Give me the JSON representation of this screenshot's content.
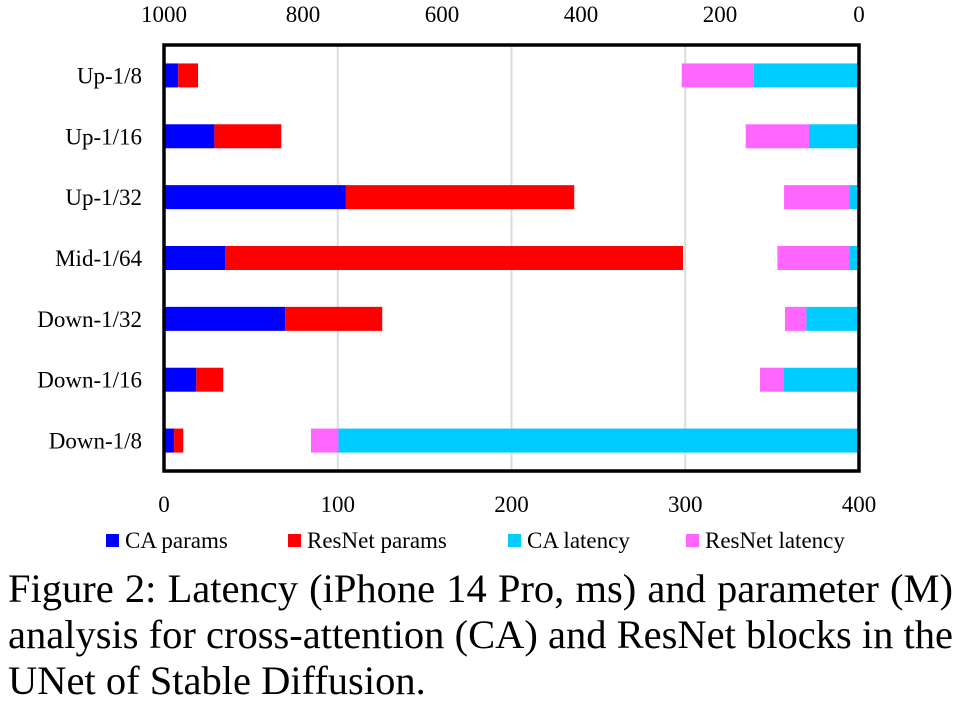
{
  "chart_data": {
    "type": "bar",
    "orientation": "horizontal",
    "stacked": true,
    "categories": [
      "Up-1/8",
      "Up-1/16",
      "Up-1/32",
      "Mid-1/64",
      "Down-1/32",
      "Down-1/16",
      "Down-1/8"
    ],
    "bottom_axis": {
      "range": [
        0,
        400
      ],
      "ticks": [
        0,
        100,
        200,
        300,
        400
      ],
      "quantity": "parameters (M)"
    },
    "top_axis": {
      "range": [
        1000,
        0
      ],
      "reversed": true,
      "ticks": [
        1000,
        800,
        600,
        400,
        200,
        0
      ],
      "quantity": "latency (ms)"
    },
    "grid": true,
    "series": [
      {
        "name": "CA params",
        "axis": "bottom",
        "color": "#0000ff",
        "values": [
          8.2,
          29.0,
          104.7,
          35.3,
          69.8,
          18.6,
          5.8
        ]
      },
      {
        "name": "ResNet params",
        "axis": "bottom",
        "color": "#ff0000",
        "values": [
          11.4,
          38.5,
          131.4,
          263.4,
          55.8,
          15.5,
          5.3
        ]
      },
      {
        "name": "CA latency",
        "axis": "top",
        "color": "#00ccff",
        "values": [
          151.5,
          72,
          13.8,
          13.8,
          75.7,
          108.8,
          749
        ]
      },
      {
        "name": "ResNet latency",
        "axis": "top",
        "color": "#ff66ff",
        "values": [
          103.6,
          91,
          94,
          103.6,
          30.8,
          33.6,
          39.5
        ]
      }
    ],
    "legend_placement": "bottom"
  },
  "caption": {
    "label": "Figure 2:",
    "text": "Latency (iPhone 14 Pro, ms) and parameter (M) analysis for cross-attention (CA) and ResNet blocks in the UNet of Stable Diffusion."
  }
}
